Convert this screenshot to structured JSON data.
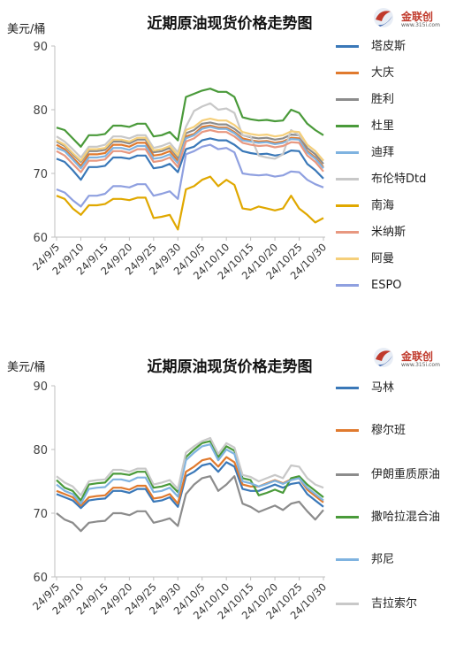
{
  "chart_data": [
    {
      "type": "line",
      "title": "近期原油现货价格走势图",
      "ylabel": "美元/桶",
      "ylim": [
        60,
        90
      ],
      "yticks": [
        60,
        70,
        80,
        90
      ],
      "x_tick_labels": [
        "24/9/5",
        "24/9/10",
        "24/9/15",
        "24/9/20",
        "24/9/25",
        "24/9/30",
        "24/10/5",
        "24/10/10",
        "24/10/15",
        "24/10/20",
        "24/10/25",
        "24/10/30"
      ],
      "x_tick_positions": [
        0,
        3,
        6,
        9,
        12,
        15,
        18,
        21,
        24,
        27,
        30,
        33
      ],
      "grid": false,
      "legend": "right",
      "series": [
        {
          "name": "塔皮斯",
          "color": "#3a78b8",
          "values": [
            72.3,
            71.8,
            70.5,
            69.0,
            71.0,
            71.0,
            71.2,
            72.5,
            72.5,
            72.3,
            72.8,
            72.8,
            70.8,
            71.0,
            71.5,
            70.2,
            73.8,
            74.2,
            75.2,
            75.5,
            75.2,
            75.2,
            74.5,
            73.5,
            73.2,
            73.0,
            73.1,
            72.8,
            73.0,
            73.6,
            73.5,
            71.5,
            70.5,
            69.2
          ]
        },
        {
          "name": "大庆",
          "color": "#e07a2e",
          "values": [
            74.5,
            73.8,
            72.5,
            71.2,
            73.0,
            73.0,
            73.2,
            74.5,
            74.5,
            74.2,
            74.8,
            74.8,
            72.8,
            73.0,
            73.5,
            72.0,
            75.8,
            76.2,
            77.3,
            77.5,
            77.2,
            77.2,
            76.5,
            75.5,
            75.2,
            75.0,
            75.1,
            74.8,
            75.0,
            75.6,
            75.5,
            73.5,
            72.5,
            71.0
          ]
        },
        {
          "name": "胜利",
          "color": "#8c8c8c",
          "values": [
            75.0,
            74.3,
            73.0,
            71.8,
            73.5,
            73.5,
            73.7,
            75.0,
            75.0,
            74.7,
            75.3,
            75.3,
            73.3,
            73.5,
            74.0,
            72.5,
            76.3,
            76.8,
            77.8,
            78.0,
            77.7,
            77.7,
            77.0,
            76.0,
            75.7,
            75.5,
            75.6,
            75.3,
            75.5,
            76.1,
            76.0,
            74.0,
            73.0,
            71.5
          ]
        },
        {
          "name": "杜里",
          "color": "#4a9a3a",
          "values": [
            77.2,
            76.8,
            75.5,
            74.2,
            76.0,
            76.0,
            76.2,
            77.5,
            77.5,
            77.3,
            77.8,
            77.8,
            75.8,
            76.0,
            76.5,
            75.2,
            82.0,
            82.5,
            83.0,
            83.3,
            82.8,
            82.8,
            82.0,
            78.8,
            78.5,
            78.3,
            78.4,
            78.2,
            78.3,
            80.0,
            79.5,
            77.8,
            76.8,
            76.0
          ]
        },
        {
          "name": "迪拜",
          "color": "#7fb3e0",
          "values": [
            74.0,
            73.5,
            72.2,
            70.8,
            72.5,
            72.5,
            72.7,
            74.0,
            74.0,
            73.7,
            74.3,
            74.3,
            72.3,
            72.5,
            73.0,
            71.6,
            75.5,
            76.0,
            77.0,
            77.3,
            77.0,
            77.0,
            76.3,
            75.2,
            75.0,
            74.8,
            74.9,
            74.6,
            74.8,
            75.4,
            75.3,
            73.3,
            72.3,
            70.8
          ]
        },
        {
          "name": "布伦特Dtd",
          "color": "#c8c8c8",
          "values": [
            75.8,
            75.0,
            73.8,
            72.5,
            74.2,
            74.2,
            74.5,
            75.8,
            75.8,
            75.5,
            76.0,
            76.0,
            74.0,
            74.3,
            74.8,
            73.3,
            77.3,
            79.8,
            80.5,
            81.0,
            80.0,
            80.2,
            79.5,
            76.0,
            75.8,
            72.8,
            72.5,
            72.3,
            73.0,
            76.8,
            76.0,
            74.5,
            73.5,
            72.0
          ]
        },
        {
          "name": "南海",
          "color": "#e0a800",
          "values": [
            66.5,
            66.0,
            64.5,
            63.5,
            65.0,
            65.0,
            65.2,
            66.0,
            66.0,
            65.8,
            66.2,
            66.2,
            63.0,
            63.2,
            63.5,
            61.2,
            67.5,
            68.0,
            69.0,
            69.5,
            68.0,
            69.0,
            68.2,
            64.5,
            64.3,
            64.8,
            64.5,
            64.2,
            64.5,
            66.5,
            64.5,
            63.5,
            62.3,
            63.0
          ]
        },
        {
          "name": "米纳斯",
          "color": "#e89880",
          "values": [
            73.5,
            72.8,
            71.5,
            70.2,
            72.0,
            72.0,
            72.2,
            73.5,
            73.5,
            73.2,
            73.8,
            73.8,
            71.8,
            72.0,
            72.5,
            71.0,
            75.0,
            75.5,
            76.5,
            76.8,
            76.5,
            76.5,
            75.8,
            74.8,
            74.5,
            74.3,
            74.4,
            74.1,
            74.3,
            74.9,
            74.8,
            72.8,
            71.8,
            70.3
          ]
        },
        {
          "name": "阿曼",
          "color": "#f5cf7a",
          "values": [
            75.2,
            74.5,
            73.2,
            72.0,
            73.8,
            73.8,
            74.0,
            75.3,
            75.3,
            75.0,
            75.6,
            75.6,
            73.6,
            73.8,
            74.3,
            72.8,
            76.8,
            77.3,
            78.3,
            78.6,
            78.3,
            78.3,
            77.6,
            76.5,
            76.2,
            76.0,
            76.1,
            75.8,
            76.0,
            76.6,
            76.5,
            74.5,
            73.5,
            72.0
          ]
        },
        {
          "name": "ESPO",
          "color": "#8fa0e0",
          "values": [
            67.5,
            67.0,
            65.8,
            64.8,
            66.5,
            66.5,
            66.8,
            68.0,
            68.0,
            67.8,
            68.3,
            68.3,
            66.5,
            66.8,
            67.2,
            66.0,
            73.0,
            73.5,
            74.2,
            74.5,
            73.8,
            74.0,
            73.3,
            70.0,
            69.8,
            69.7,
            69.8,
            69.5,
            69.7,
            70.3,
            70.2,
            69.0,
            68.3,
            67.8
          ]
        }
      ]
    },
    {
      "type": "line",
      "title": "近期原油现货价格走势图",
      "ylabel": "美元/桶",
      "ylim": [
        60,
        90
      ],
      "yticks": [
        60,
        70,
        80,
        90
      ],
      "x_tick_labels": [
        "24/9/5",
        "24/9/10",
        "24/9/15",
        "24/9/20",
        "24/9/25",
        "24/9/30",
        "24/10/5",
        "24/10/10",
        "24/10/15",
        "24/10/20",
        "24/10/25",
        "24/10/30"
      ],
      "x_tick_positions": [
        0,
        3,
        6,
        9,
        12,
        15,
        18,
        21,
        24,
        27,
        30,
        33
      ],
      "grid": false,
      "legend": "right",
      "series": [
        {
          "name": "马林",
          "color": "#3a78b8",
          "values": [
            73.0,
            72.5,
            72.0,
            70.8,
            72.0,
            72.2,
            72.3,
            73.5,
            73.5,
            73.2,
            73.8,
            73.8,
            71.8,
            72.0,
            72.5,
            71.0,
            75.8,
            76.5,
            77.5,
            77.8,
            76.5,
            78.0,
            77.3,
            73.8,
            73.5,
            73.5,
            74.0,
            74.5,
            74.0,
            74.6,
            74.8,
            73.0,
            72.0,
            71.0
          ]
        },
        {
          "name": "穆尔班",
          "color": "#e07a2e",
          "values": [
            73.5,
            73.0,
            72.5,
            71.2,
            72.5,
            72.7,
            72.8,
            74.0,
            74.0,
            73.7,
            74.3,
            74.3,
            72.3,
            72.5,
            73.0,
            71.5,
            76.5,
            77.3,
            78.3,
            78.6,
            77.3,
            78.8,
            78.0,
            74.5,
            74.2,
            74.2,
            74.7,
            75.2,
            74.7,
            75.3,
            75.5,
            73.7,
            72.7,
            71.7
          ]
        },
        {
          "name": "伊朗重质原油",
          "color": "#8c8c8c",
          "values": [
            70.0,
            69.0,
            68.5,
            67.2,
            68.5,
            68.7,
            68.8,
            70.0,
            70.0,
            69.7,
            70.3,
            70.3,
            68.5,
            68.8,
            69.2,
            68.0,
            73.0,
            74.5,
            75.5,
            75.8,
            73.5,
            74.5,
            75.8,
            71.5,
            71.0,
            70.2,
            70.7,
            71.2,
            70.5,
            71.5,
            71.8,
            70.3,
            69.0,
            70.5
          ]
        },
        {
          "name": "撒哈拉混合油",
          "color": "#4a9a3a",
          "values": [
            75.2,
            74.0,
            73.5,
            72.0,
            74.5,
            74.7,
            74.8,
            76.2,
            76.2,
            76.0,
            76.5,
            76.5,
            74.0,
            74.2,
            74.6,
            73.3,
            78.8,
            80.0,
            81.0,
            81.3,
            78.8,
            80.5,
            79.8,
            75.5,
            75.2,
            72.8,
            73.2,
            73.7,
            73.2,
            75.5,
            75.8,
            74.5,
            73.5,
            72.5
          ]
        },
        {
          "name": "邦尼",
          "color": "#7fb3e0",
          "values": [
            74.5,
            73.5,
            73.0,
            71.5,
            73.8,
            74.0,
            74.1,
            75.3,
            75.3,
            75.0,
            75.6,
            75.6,
            73.3,
            73.5,
            74.0,
            72.6,
            78.3,
            79.5,
            80.5,
            80.8,
            78.3,
            80.0,
            79.3,
            75.0,
            74.7,
            74.2,
            74.6,
            75.1,
            74.6,
            75.2,
            75.5,
            74.0,
            73.0,
            72.0
          ]
        },
        {
          "name": "吉拉索尔",
          "color": "#c8c8c8",
          "values": [
            75.8,
            74.8,
            74.2,
            72.8,
            75.0,
            75.2,
            75.3,
            76.8,
            76.8,
            76.5,
            77.0,
            77.0,
            74.5,
            74.8,
            75.2,
            73.8,
            79.5,
            80.5,
            81.3,
            81.8,
            79.3,
            81.0,
            80.3,
            76.0,
            75.7,
            75.0,
            75.5,
            76.0,
            75.5,
            77.5,
            77.3,
            75.5,
            74.5,
            74.0
          ]
        }
      ]
    }
  ],
  "logo": {
    "brand": "金联创",
    "sub": "www.315i.com"
  }
}
